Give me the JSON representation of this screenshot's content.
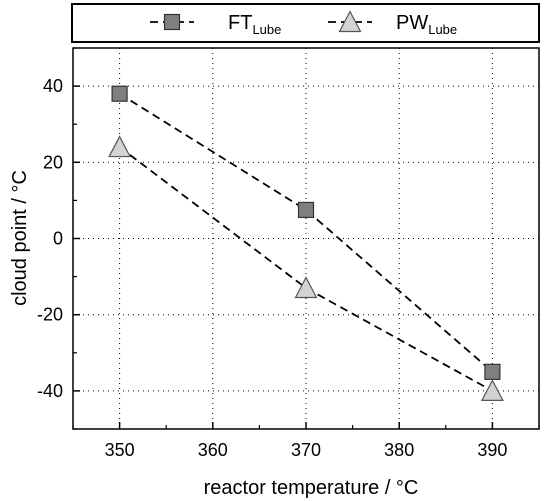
{
  "chart_data": {
    "type": "line",
    "xlabel": "reactor temperature / °C",
    "ylabel": "cloud point / °C",
    "xlim": [
      345,
      395
    ],
    "ylim": [
      -50,
      50
    ],
    "x_ticks": [
      350,
      360,
      370,
      380,
      390
    ],
    "y_ticks": [
      40,
      20,
      0,
      -20,
      -40
    ],
    "x_tick_labels": [
      "350",
      "360",
      "370",
      "380",
      "390"
    ],
    "y_tick_labels": [
      "40",
      "20",
      "0",
      "-20",
      "-40"
    ],
    "grid": true,
    "legend_placement": "top",
    "series": [
      {
        "name_main": "FT",
        "name_sub": "Lube",
        "marker": "square",
        "color": "#7f7f7f",
        "line_style": "dashed",
        "x": [
          350,
          370,
          390
        ],
        "y": [
          38,
          7.5,
          -35
        ]
      },
      {
        "name_main": "PW",
        "name_sub": "Lube",
        "marker": "triangle",
        "color": "#d3d3d3",
        "line_style": "dashed",
        "x": [
          350,
          370,
          390
        ],
        "y": [
          24,
          -13,
          -40
        ]
      }
    ]
  }
}
